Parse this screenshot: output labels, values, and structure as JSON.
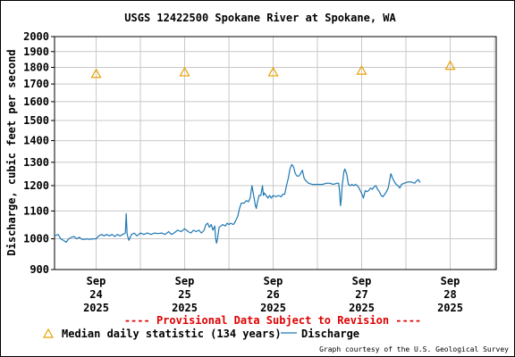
{
  "chart_data": {
    "type": "line",
    "title": "USGS 12422500 Spokane River at Spokane, WA",
    "ylabel": "Discharge, cubic feet per second",
    "ylim": [
      900,
      2000
    ],
    "y_scale": "log",
    "y_ticks": [
      "900",
      "1000",
      "1100",
      "1200",
      "1300",
      "1400",
      "1500",
      "1600",
      "1700",
      "1800",
      "1900",
      "2000"
    ],
    "x_ticks": [
      {
        "month": "Sep",
        "day": "24",
        "year": "2025",
        "t": 0
      },
      {
        "month": "Sep",
        "day": "25",
        "year": "2025",
        "t": 1
      },
      {
        "month": "Sep",
        "day": "26",
        "year": "2025",
        "t": 2
      },
      {
        "month": "Sep",
        "day": "27",
        "year": "2025",
        "t": 3
      },
      {
        "month": "Sep",
        "day": "28",
        "year": "2025",
        "t": 4
      }
    ],
    "xlim": [
      -0.47,
      4.52
    ],
    "grid": true,
    "provisional_note": "---- Provisional Data Subject to Revision ----",
    "credit": "Graph courtesy of the U.S. Geological Survey",
    "series": [
      {
        "name": "Median daily statistic (134 years)",
        "color": "#e8a200",
        "marker": "triangle",
        "points": [
          [
            0.0,
            1760
          ],
          [
            1.0,
            1770
          ],
          [
            2.0,
            1770
          ],
          [
            3.0,
            1780
          ],
          [
            4.0,
            1810
          ]
        ]
      },
      {
        "name": "Discharge",
        "color": "#1f78b4",
        "marker": "line",
        "points": [
          [
            -0.47,
            1010
          ],
          [
            -0.43,
            1015
          ],
          [
            -0.4,
            1000
          ],
          [
            -0.37,
            995
          ],
          [
            -0.34,
            988
          ],
          [
            -0.31,
            1000
          ],
          [
            -0.28,
            1005
          ],
          [
            -0.25,
            1008
          ],
          [
            -0.22,
            1000
          ],
          [
            -0.19,
            1005
          ],
          [
            -0.16,
            998
          ],
          [
            -0.13,
            998
          ],
          [
            -0.1,
            1000
          ],
          [
            -0.07,
            998
          ],
          [
            -0.04,
            1000
          ],
          [
            0.0,
            1000
          ],
          [
            0.03,
            1010
          ],
          [
            0.06,
            1015
          ],
          [
            0.09,
            1010
          ],
          [
            0.12,
            1015
          ],
          [
            0.15,
            1010
          ],
          [
            0.18,
            1015
          ],
          [
            0.21,
            1008
          ],
          [
            0.24,
            1015
          ],
          [
            0.27,
            1010
          ],
          [
            0.3,
            1015
          ],
          [
            0.33,
            1020
          ],
          [
            0.34,
            1090
          ],
          [
            0.35,
            1015
          ],
          [
            0.37,
            995
          ],
          [
            0.4,
            1015
          ],
          [
            0.43,
            1020
          ],
          [
            0.46,
            1010
          ],
          [
            0.5,
            1020
          ],
          [
            0.54,
            1015
          ],
          [
            0.58,
            1020
          ],
          [
            0.62,
            1015
          ],
          [
            0.66,
            1020
          ],
          [
            0.7,
            1018
          ],
          [
            0.74,
            1020
          ],
          [
            0.78,
            1015
          ],
          [
            0.82,
            1025
          ],
          [
            0.85,
            1015
          ],
          [
            0.88,
            1020
          ],
          [
            0.92,
            1030
          ],
          [
            0.96,
            1025
          ],
          [
            1.0,
            1035
          ],
          [
            1.04,
            1025
          ],
          [
            1.07,
            1020
          ],
          [
            1.1,
            1030
          ],
          [
            1.13,
            1025
          ],
          [
            1.16,
            1030
          ],
          [
            1.19,
            1020
          ],
          [
            1.22,
            1030
          ],
          [
            1.24,
            1050
          ],
          [
            1.26,
            1055
          ],
          [
            1.28,
            1040
          ],
          [
            1.3,
            1050
          ],
          [
            1.32,
            1030
          ],
          [
            1.34,
            1045
          ],
          [
            1.35,
            1000
          ],
          [
            1.36,
            985
          ],
          [
            1.37,
            1000
          ],
          [
            1.39,
            1040
          ],
          [
            1.41,
            1045
          ],
          [
            1.43,
            1050
          ],
          [
            1.46,
            1045
          ],
          [
            1.48,
            1055
          ],
          [
            1.5,
            1050
          ],
          [
            1.52,
            1055
          ],
          [
            1.55,
            1050
          ],
          [
            1.57,
            1060
          ],
          [
            1.6,
            1080
          ],
          [
            1.62,
            1110
          ],
          [
            1.64,
            1130
          ],
          [
            1.67,
            1130
          ],
          [
            1.7,
            1140
          ],
          [
            1.72,
            1135
          ],
          [
            1.74,
            1150
          ],
          [
            1.76,
            1200
          ],
          [
            1.78,
            1160
          ],
          [
            1.79,
            1140
          ],
          [
            1.8,
            1120
          ],
          [
            1.81,
            1110
          ],
          [
            1.82,
            1130
          ],
          [
            1.84,
            1160
          ],
          [
            1.86,
            1160
          ],
          [
            1.88,
            1200
          ],
          [
            1.89,
            1160
          ],
          [
            1.9,
            1170
          ],
          [
            1.92,
            1160
          ],
          [
            1.94,
            1150
          ],
          [
            1.96,
            1160
          ],
          [
            1.98,
            1150
          ],
          [
            2.0,
            1160
          ],
          [
            2.03,
            1155
          ],
          [
            2.06,
            1160
          ],
          [
            2.09,
            1155
          ],
          [
            2.11,
            1165
          ],
          [
            2.13,
            1165
          ],
          [
            2.15,
            1200
          ],
          [
            2.17,
            1230
          ],
          [
            2.19,
            1270
          ],
          [
            2.21,
            1290
          ],
          [
            2.23,
            1280
          ],
          [
            2.25,
            1250
          ],
          [
            2.27,
            1240
          ],
          [
            2.29,
            1240
          ],
          [
            2.31,
            1250
          ],
          [
            2.33,
            1265
          ],
          [
            2.35,
            1230
          ],
          [
            2.37,
            1220
          ],
          [
            2.4,
            1210
          ],
          [
            2.44,
            1205
          ],
          [
            2.48,
            1205
          ],
          [
            2.52,
            1205
          ],
          [
            2.56,
            1205
          ],
          [
            2.6,
            1210
          ],
          [
            2.64,
            1210
          ],
          [
            2.68,
            1205
          ],
          [
            2.72,
            1210
          ],
          [
            2.74,
            1210
          ],
          [
            2.75,
            1175
          ],
          [
            2.76,
            1120
          ],
          [
            2.77,
            1150
          ],
          [
            2.78,
            1200
          ],
          [
            2.8,
            1260
          ],
          [
            2.81,
            1270
          ],
          [
            2.82,
            1260
          ],
          [
            2.83,
            1250
          ],
          [
            2.85,
            1205
          ],
          [
            2.87,
            1200
          ],
          [
            2.89,
            1205
          ],
          [
            2.91,
            1200
          ],
          [
            2.93,
            1205
          ],
          [
            2.95,
            1200
          ],
          [
            2.97,
            1190
          ],
          [
            2.99,
            1175
          ],
          [
            3.01,
            1160
          ],
          [
            3.02,
            1150
          ],
          [
            3.04,
            1180
          ],
          [
            3.06,
            1175
          ],
          [
            3.08,
            1180
          ],
          [
            3.1,
            1190
          ],
          [
            3.12,
            1185
          ],
          [
            3.14,
            1195
          ],
          [
            3.16,
            1200
          ],
          [
            3.18,
            1185
          ],
          [
            3.2,
            1175
          ],
          [
            3.22,
            1160
          ],
          [
            3.24,
            1155
          ],
          [
            3.26,
            1165
          ],
          [
            3.28,
            1175
          ],
          [
            3.3,
            1190
          ],
          [
            3.32,
            1230
          ],
          [
            3.33,
            1250
          ],
          [
            3.35,
            1230
          ],
          [
            3.37,
            1215
          ],
          [
            3.39,
            1205
          ],
          [
            3.41,
            1200
          ],
          [
            3.43,
            1190
          ],
          [
            3.45,
            1205
          ],
          [
            3.48,
            1210
          ],
          [
            3.52,
            1215
          ],
          [
            3.56,
            1215
          ],
          [
            3.6,
            1210
          ],
          [
            3.62,
            1220
          ],
          [
            3.64,
            1225
          ],
          [
            3.66,
            1212
          ]
        ]
      }
    ]
  }
}
